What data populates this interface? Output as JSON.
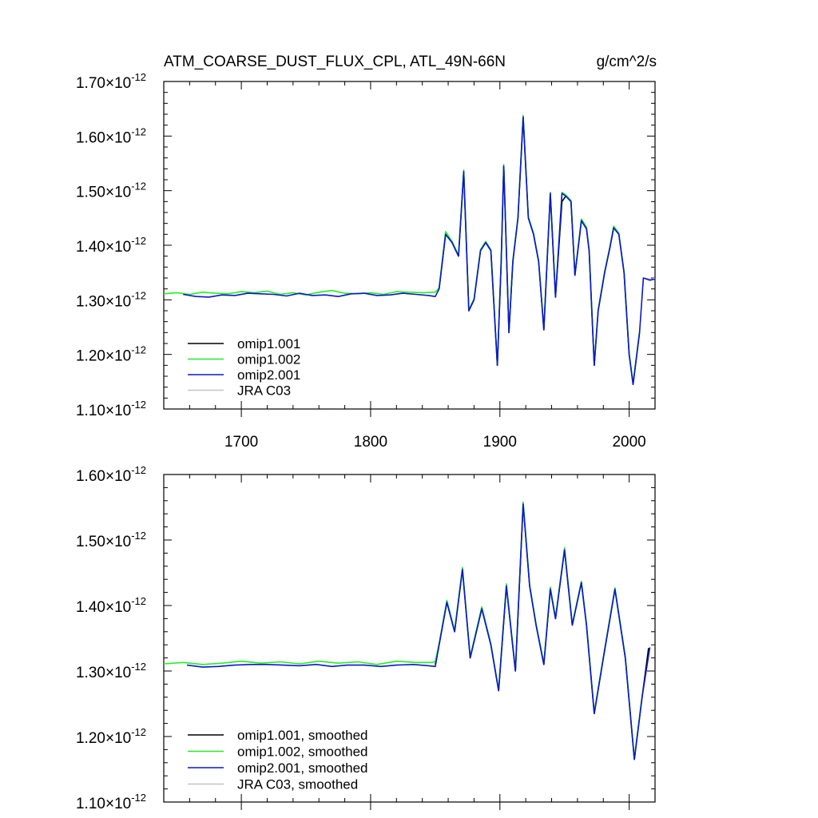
{
  "figure": {
    "title_left": "ATM_COARSE_DUST_FLUX_CPL, ATL_49N-66N",
    "title_right": "g/cm^2/s"
  },
  "chart_data": [
    {
      "type": "line",
      "panel": "top",
      "xlim": [
        1640,
        2020
      ],
      "ylim": [
        1.1e-12,
        1.7e-12
      ],
      "x_ticks": [
        {
          "value": 1700,
          "label": "1700"
        },
        {
          "value": 1800,
          "label": "1800"
        },
        {
          "value": 1900,
          "label": "1900"
        },
        {
          "value": 2000,
          "label": "2000"
        }
      ],
      "y_ticks": [
        {
          "value": 1.1e-12,
          "mantissa": "1.10",
          "exponent": "-12"
        },
        {
          "value": 1.2e-12,
          "mantissa": "1.20",
          "exponent": "-12"
        },
        {
          "value": 1.3e-12,
          "mantissa": "1.30",
          "exponent": "-12"
        },
        {
          "value": 1.4e-12,
          "mantissa": "1.40",
          "exponent": "-12"
        },
        {
          "value": 1.5e-12,
          "mantissa": "1.50",
          "exponent": "-12"
        },
        {
          "value": 1.6e-12,
          "mantissa": "1.60",
          "exponent": "-12"
        },
        {
          "value": 1.7e-12,
          "mantissa": "1.70",
          "exponent": "-12"
        }
      ],
      "times_symbol": "×",
      "legend": "bottom-left",
      "series": [
        {
          "name": "omip1.001",
          "color": "#000000",
          "x": [
            1853,
            1858,
            1863,
            1868,
            1872,
            1876,
            1880,
            1885,
            1889,
            1893,
            1898,
            1901,
            1903,
            1907,
            1910,
            1914,
            1918,
            1922,
            1926,
            1930,
            1934,
            1939,
            1943,
            1948,
            1951,
            1955,
            1958,
            1963,
            1967,
            1969,
            1973,
            1976,
            1981,
            1985,
            1988,
            1992,
            1996,
            2000,
            2003,
            2008
          ],
          "y": [
            1.32,
            1.42,
            1.405,
            1.38,
            1.535,
            1.28,
            1.3,
            1.39,
            1.405,
            1.39,
            1.18,
            1.37,
            1.545,
            1.24,
            1.37,
            1.45,
            1.635,
            1.45,
            1.42,
            1.37,
            1.245,
            1.495,
            1.305,
            1.48,
            1.49,
            1.48,
            1.345,
            1.445,
            1.43,
            1.39,
            1.18,
            1.28,
            1.35,
            1.395,
            1.432,
            1.42,
            1.35,
            1.2,
            1.145,
            1.24
          ]
        },
        {
          "name": "omip1.002",
          "color": "#22ee22",
          "x": [
            1640,
            1650,
            1660,
            1670,
            1680,
            1690,
            1700,
            1710,
            1720,
            1730,
            1740,
            1750,
            1760,
            1770,
            1780,
            1790,
            1800,
            1810,
            1820,
            1830,
            1840,
            1850,
            1853,
            1858,
            1863,
            1868,
            1872,
            1876,
            1880,
            1885,
            1889,
            1893,
            1898,
            1901,
            1903,
            1907,
            1910,
            1914,
            1918,
            1922,
            1926,
            1930,
            1934,
            1939,
            1943,
            1948,
            1951,
            1955,
            1958,
            1963,
            1967,
            1969,
            1973,
            1976,
            1981,
            1985,
            1988,
            1992,
            1996,
            2000,
            2003,
            2008
          ],
          "y": [
            1.311,
            1.313,
            1.31,
            1.314,
            1.312,
            1.311,
            1.315,
            1.313,
            1.316,
            1.31,
            1.313,
            1.309,
            1.314,
            1.317,
            1.312,
            1.311,
            1.313,
            1.31,
            1.315,
            1.314,
            1.313,
            1.314,
            1.322,
            1.425,
            1.407,
            1.382,
            1.538,
            1.282,
            1.302,
            1.392,
            1.407,
            1.392,
            1.182,
            1.372,
            1.548,
            1.242,
            1.372,
            1.452,
            1.638,
            1.452,
            1.422,
            1.372,
            1.248,
            1.497,
            1.307,
            1.497,
            1.492,
            1.482,
            1.347,
            1.448,
            1.433,
            1.392,
            1.182,
            1.282,
            1.352,
            1.397,
            1.435,
            1.422,
            1.352,
            1.202,
            1.148,
            1.242
          ]
        },
        {
          "name": "omip2.001",
          "color": "#0a18cc",
          "x": [
            1655,
            1665,
            1675,
            1685,
            1695,
            1705,
            1715,
            1725,
            1735,
            1745,
            1755,
            1765,
            1775,
            1785,
            1795,
            1805,
            1815,
            1825,
            1835,
            1845,
            1850,
            1853,
            1858,
            1863,
            1868,
            1872,
            1876,
            1880,
            1885,
            1889,
            1893,
            1898,
            1901,
            1903,
            1907,
            1910,
            1914,
            1918,
            1922,
            1926,
            1930,
            1934,
            1939,
            1943,
            1948,
            1951,
            1955,
            1958,
            1963,
            1967,
            1969,
            1973,
            1976,
            1981,
            1985,
            1988,
            1992,
            1996,
            2000,
            2003,
            2008,
            2011,
            2016,
            2020
          ],
          "y": [
            1.31,
            1.306,
            1.305,
            1.309,
            1.308,
            1.312,
            1.311,
            1.31,
            1.307,
            1.312,
            1.308,
            1.309,
            1.306,
            1.311,
            1.312,
            1.308,
            1.309,
            1.312,
            1.31,
            1.308,
            1.306,
            1.32,
            1.42,
            1.405,
            1.38,
            1.535,
            1.28,
            1.3,
            1.39,
            1.405,
            1.39,
            1.18,
            1.37,
            1.545,
            1.24,
            1.37,
            1.45,
            1.635,
            1.45,
            1.42,
            1.37,
            1.245,
            1.495,
            1.305,
            1.495,
            1.49,
            1.48,
            1.345,
            1.445,
            1.43,
            1.39,
            1.18,
            1.28,
            1.35,
            1.395,
            1.432,
            1.42,
            1.35,
            1.2,
            1.145,
            1.24,
            1.34,
            1.336,
            1.338
          ]
        },
        {
          "name": "JRA C03",
          "color": "#c4c4c4",
          "x": [
            2012,
            2016,
            2020
          ],
          "y": [
            1.34,
            1.338,
            1.339
          ]
        }
      ]
    },
    {
      "type": "line",
      "panel": "bottom",
      "xlim": [
        1640,
        2020
      ],
      "ylim": [
        1.1e-12,
        1.6e-12
      ],
      "x_ticks": [
        {
          "value": 1700,
          "label": ""
        },
        {
          "value": 1800,
          "label": ""
        },
        {
          "value": 1900,
          "label": ""
        },
        {
          "value": 2000,
          "label": ""
        }
      ],
      "y_ticks": [
        {
          "value": 1.1e-12,
          "mantissa": "1.10",
          "exponent": "-12"
        },
        {
          "value": 1.2e-12,
          "mantissa": "1.20",
          "exponent": "-12"
        },
        {
          "value": 1.3e-12,
          "mantissa": "1.30",
          "exponent": "-12"
        },
        {
          "value": 1.4e-12,
          "mantissa": "1.40",
          "exponent": "-12"
        },
        {
          "value": 1.5e-12,
          "mantissa": "1.50",
          "exponent": "-12"
        },
        {
          "value": 1.6e-12,
          "mantissa": "1.60",
          "exponent": "-12"
        }
      ],
      "times_symbol": "×",
      "legend": "bottom-left",
      "series": [
        {
          "name": "omip1.001, smoothed",
          "color": "#000000",
          "x": [
            1850,
            1853,
            1859,
            1865,
            1871,
            1877,
            1886,
            1893,
            1899,
            1905,
            1912,
            1918,
            1923,
            1928,
            1934,
            1939,
            1943,
            1950,
            1956,
            1963,
            1967,
            1973,
            1980,
            1989,
            1997,
            2004,
            2010,
            2015
          ],
          "y": [
            1.31,
            1.34,
            1.405,
            1.36,
            1.455,
            1.32,
            1.395,
            1.34,
            1.27,
            1.43,
            1.3,
            1.555,
            1.43,
            1.37,
            1.31,
            1.425,
            1.38,
            1.485,
            1.37,
            1.435,
            1.37,
            1.235,
            1.32,
            1.425,
            1.32,
            1.165,
            1.26,
            1.335
          ]
        },
        {
          "name": "omip1.002, smoothed",
          "color": "#22ee22",
          "x": [
            1640,
            1655,
            1670,
            1685,
            1700,
            1715,
            1730,
            1745,
            1760,
            1775,
            1790,
            1805,
            1820,
            1835,
            1848,
            1850,
            1853,
            1859,
            1865,
            1871,
            1877,
            1886,
            1893,
            1899,
            1905,
            1912,
            1918,
            1923,
            1928,
            1934,
            1939,
            1943,
            1950,
            1956,
            1963,
            1967,
            1973,
            1980,
            1989,
            1997,
            2004,
            2010
          ],
          "y": [
            1.311,
            1.313,
            1.31,
            1.312,
            1.315,
            1.312,
            1.314,
            1.311,
            1.315,
            1.312,
            1.314,
            1.31,
            1.315,
            1.313,
            1.313,
            1.315,
            1.342,
            1.408,
            1.362,
            1.458,
            1.322,
            1.398,
            1.342,
            1.272,
            1.433,
            1.302,
            1.558,
            1.432,
            1.372,
            1.312,
            1.428,
            1.382,
            1.488,
            1.372,
            1.437,
            1.372,
            1.237,
            1.322,
            1.427,
            1.322,
            1.167,
            1.262
          ]
        },
        {
          "name": "omip2.001, smoothed",
          "color": "#0a18cc",
          "x": [
            1658,
            1670,
            1682,
            1695,
            1708,
            1720,
            1732,
            1745,
            1758,
            1770,
            1782,
            1795,
            1808,
            1820,
            1833,
            1845,
            1850,
            1853,
            1859,
            1865,
            1871,
            1877,
            1886,
            1893,
            1899,
            1905,
            1912,
            1918,
            1923,
            1928,
            1934,
            1939,
            1943,
            1950,
            1956,
            1963,
            1967,
            1973,
            1980,
            1989,
            1997,
            2004,
            2010,
            2016
          ],
          "y": [
            1.309,
            1.306,
            1.307,
            1.309,
            1.31,
            1.31,
            1.309,
            1.308,
            1.31,
            1.307,
            1.309,
            1.309,
            1.307,
            1.309,
            1.31,
            1.308,
            1.307,
            1.34,
            1.405,
            1.36,
            1.455,
            1.32,
            1.395,
            1.34,
            1.27,
            1.43,
            1.3,
            1.555,
            1.43,
            1.37,
            1.31,
            1.425,
            1.38,
            1.485,
            1.37,
            1.435,
            1.37,
            1.235,
            1.32,
            1.425,
            1.32,
            1.165,
            1.26,
            1.336
          ]
        },
        {
          "name": "JRA C03, smoothed",
          "color": "#c4c4c4",
          "x": [],
          "y": []
        }
      ]
    }
  ]
}
